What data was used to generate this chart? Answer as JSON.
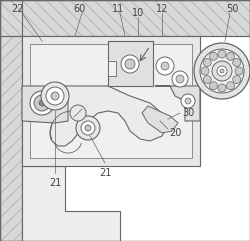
{
  "bg_color": "#ffffff",
  "line_color": "#999999",
  "dark_line": "#666666",
  "fill_light": "#eeeeee",
  "fill_mid": "#e0e0e0",
  "fill_dark": "#cccccc",
  "hatch_fill": "#d8d8d8",
  "label_color": "#444444"
}
